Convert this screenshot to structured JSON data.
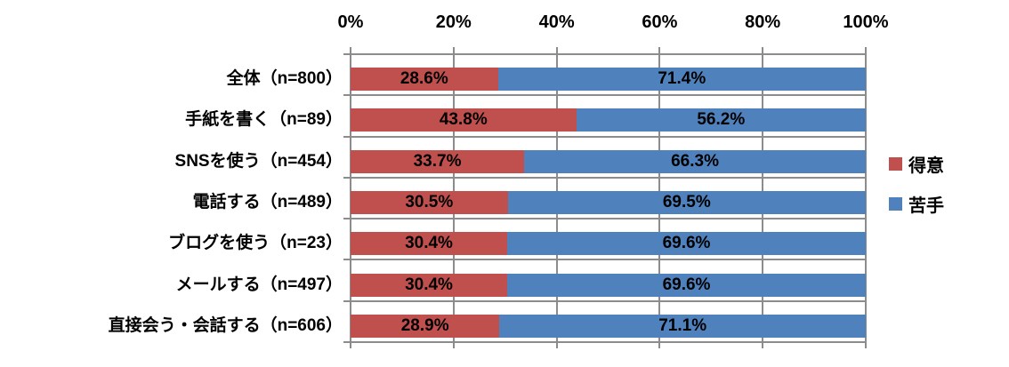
{
  "chart_data": {
    "type": "bar",
    "variant": "horizontal-stacked",
    "title": "",
    "categories": [
      "全体（n=800）",
      "手紙を書く（n=89）",
      "SNSを使う（n=454）",
      "電話する（n=489）",
      "ブログを使う（n=23）",
      "メールする（n=497）",
      "直接会う・会話する（n=606）"
    ],
    "series": [
      {
        "name": "得意",
        "color": "#C0504D",
        "values": [
          28.6,
          43.8,
          33.7,
          30.5,
          30.4,
          30.4,
          28.9
        ]
      },
      {
        "name": "苦手",
        "color": "#4F81BD",
        "values": [
          71.4,
          56.2,
          66.3,
          69.5,
          69.6,
          69.6,
          71.1
        ]
      }
    ],
    "value_label_suffix": "%",
    "x_ticks": [
      "0%",
      "20%",
      "40%",
      "60%",
      "80%",
      "100%"
    ],
    "xlim": [
      0,
      100
    ],
    "grid": true,
    "value_axis_position": "top",
    "legend_position": "right",
    "colors": {
      "grid": "#8C8C8C",
      "label_text": "#000000",
      "background": "#FFFFFF"
    }
  }
}
